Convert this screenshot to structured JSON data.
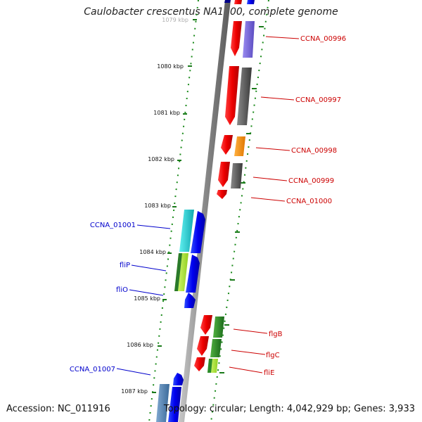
{
  "title": "Caulobacter crescentus NA1000, complete genome",
  "footer": {
    "accession": "Accession: NC_011916",
    "topology": "Topology: circular; Length: 4,042,929 bp; Genes: 3,933"
  },
  "ticks": [
    "1079 kbp",
    "1080 kbp",
    "1081 kbp",
    "1082 kbp",
    "1083 kbp",
    "1084 kbp",
    "1085 kbp",
    "1086 kbp",
    "1087 kbp"
  ],
  "genes_reverse": [
    {
      "label": "CCNA_01001",
      "color": "#0000cc"
    },
    {
      "label": "fliP",
      "color": "#0000cc"
    },
    {
      "label": "fliO",
      "color": "#0000cc"
    },
    {
      "label": "CCNA_01007",
      "color": "#0000cc"
    }
  ],
  "genes_forward": [
    {
      "label": "CCNA_00996",
      "color": "#cc0000"
    },
    {
      "label": "CCNA_00997",
      "color": "#cc0000"
    },
    {
      "label": "CCNA_00998",
      "color": "#cc0000"
    },
    {
      "label": "CCNA_00999",
      "color": "#cc0000"
    },
    {
      "label": "CCNA_01000",
      "color": "#cc0000"
    },
    {
      "label": "flgB",
      "color": "#cc0000"
    },
    {
      "label": "flgC",
      "color": "#cc0000"
    },
    {
      "label": "fliE",
      "color": "#cc0000"
    }
  ],
  "colors": {
    "forward_strand": "#ff0000",
    "reverse_strand": "#0000ff",
    "backbone": "#888888",
    "tick": "#1a7a1a"
  }
}
